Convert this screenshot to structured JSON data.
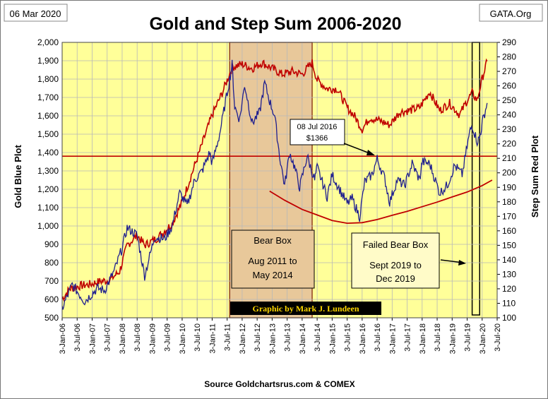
{
  "header": {
    "date_label": "06 Mar 2020",
    "site_label": "GATA.Org"
  },
  "colors": {
    "plot_bg": "#ffff99",
    "bear_box_fill": "#e8c89a",
    "gold_series": "#1f1f8f",
    "step_sum_series": "#c00000",
    "annotation_box": "#fffbc8",
    "credit_bg": "#000000",
    "credit_text": "#ffd700"
  },
  "chart_data": {
    "type": "line",
    "title": "Gold and Step Sum 2006-2020",
    "source": "Source Goldchartsrus.com & COMEX",
    "credit": "Graphic by Mark J. Lundeen",
    "ylabel_left": "Gold   Blue Plot",
    "ylabel_right": "Step Sum    Red Plot",
    "ylim_left": [
      500,
      2000
    ],
    "ylim_right": [
      100,
      290
    ],
    "left_ticks": [
      "500",
      "600",
      "700",
      "800",
      "900",
      "1,000",
      "1,100",
      "1,200",
      "1,300",
      "1,400",
      "1,500",
      "1,600",
      "1,700",
      "1,800",
      "1,900",
      "2,000"
    ],
    "right_ticks": [
      "100",
      "110",
      "120",
      "130",
      "140",
      "150",
      "160",
      "170",
      "180",
      "190",
      "200",
      "210",
      "220",
      "230",
      "240",
      "250",
      "260",
      "270",
      "280",
      "290"
    ],
    "x_ticks": [
      "3-Jan-06",
      "3-Jul-06",
      "3-Jan-07",
      "3-Jul-07",
      "3-Jan-08",
      "3-Jul-08",
      "3-Jan-09",
      "3-Jul-09",
      "3-Jan-10",
      "3-Jul-10",
      "3-Jan-11",
      "3-Jul-11",
      "3-Jan-12",
      "3-Jul-12",
      "3-Jan-13",
      "3-Jul-13",
      "3-Jan-14",
      "3-Jul-14",
      "3-Jan-15",
      "3-Jul-15",
      "3-Jan-16",
      "3-Jul-16",
      "3-Jan-17",
      "3-Jul-17",
      "3-Jan-18",
      "3-Jul-18",
      "3-Jan-19",
      "3-Jul-19",
      "3-Jan-20",
      "3-Jul-20"
    ],
    "grid": true,
    "series": [
      {
        "axis": "left",
        "points": [
          [
            "2006-01",
            550
          ],
          [
            "2006-05",
            680
          ],
          [
            "2006-10",
            590
          ],
          [
            "2007-03",
            660
          ],
          [
            "2007-06",
            650
          ],
          [
            "2007-10",
            760
          ],
          [
            "2008-01",
            880
          ],
          [
            "2008-03",
            990
          ],
          [
            "2008-07",
            950
          ],
          [
            "2008-10",
            730
          ],
          [
            "2009-02",
            940
          ],
          [
            "2009-06",
            930
          ],
          [
            "2009-09",
            1000
          ],
          [
            "2009-12",
            1180
          ],
          [
            "2010-03",
            1110
          ],
          [
            "2010-06",
            1250
          ],
          [
            "2010-09",
            1300
          ],
          [
            "2010-12",
            1400
          ],
          [
            "2011-01",
            1340
          ],
          [
            "2011-04",
            1500
          ],
          [
            "2011-08",
            1800
          ],
          [
            "2011-09",
            1880
          ],
          [
            "2011-10",
            1650
          ],
          [
            "2011-12",
            1580
          ],
          [
            "2012-02",
            1770
          ],
          [
            "2012-05",
            1560
          ],
          [
            "2012-08",
            1620
          ],
          [
            "2012-10",
            1780
          ],
          [
            "2012-12",
            1680
          ],
          [
            "2013-02",
            1600
          ],
          [
            "2013-04",
            1380
          ],
          [
            "2013-06",
            1220
          ],
          [
            "2013-08",
            1400
          ],
          [
            "2013-10",
            1320
          ],
          [
            "2013-12",
            1210
          ],
          [
            "2014-03",
            1380
          ],
          [
            "2014-06",
            1250
          ],
          [
            "2014-07",
            1320
          ],
          [
            "2014-11",
            1160
          ],
          [
            "2015-01",
            1280
          ],
          [
            "2015-04",
            1200
          ],
          [
            "2015-07",
            1120
          ],
          [
            "2015-09",
            1150
          ],
          [
            "2015-12",
            1050
          ],
          [
            "2016-02",
            1240
          ],
          [
            "2016-05",
            1280
          ],
          [
            "2016-07",
            1366
          ],
          [
            "2016-10",
            1260
          ],
          [
            "2016-12",
            1130
          ],
          [
            "2017-03",
            1250
          ],
          [
            "2017-06",
            1220
          ],
          [
            "2017-09",
            1340
          ],
          [
            "2017-12",
            1250
          ],
          [
            "2018-01",
            1350
          ],
          [
            "2018-04",
            1340
          ],
          [
            "2018-08",
            1180
          ],
          [
            "2018-11",
            1220
          ],
          [
            "2019-02",
            1330
          ],
          [
            "2019-05",
            1280
          ],
          [
            "2019-08",
            1510
          ],
          [
            "2019-09",
            1550
          ],
          [
            "2019-11",
            1460
          ],
          [
            "2019-12",
            1480
          ],
          [
            "2020-01",
            1560
          ],
          [
            "2020-03",
            1670
          ]
        ]
      },
      {
        "axis": "right",
        "points": [
          [
            "2006-01",
            113
          ],
          [
            "2006-04",
            120
          ],
          [
            "2006-08",
            122
          ],
          [
            "2006-12",
            123
          ],
          [
            "2007-04",
            125
          ],
          [
            "2007-08",
            126
          ],
          [
            "2007-12",
            132
          ],
          [
            "2008-03",
            150
          ],
          [
            "2008-07",
            157
          ],
          [
            "2008-10",
            150
          ],
          [
            "2009-03",
            155
          ],
          [
            "2009-09",
            165
          ],
          [
            "2010-01",
            180
          ],
          [
            "2010-05",
            200
          ],
          [
            "2010-09",
            220
          ],
          [
            "2011-01",
            240
          ],
          [
            "2011-05",
            255
          ],
          [
            "2011-09",
            273
          ],
          [
            "2012-01",
            275
          ],
          [
            "2012-05",
            272
          ],
          [
            "2012-09",
            276
          ],
          [
            "2013-01",
            272
          ],
          [
            "2013-05",
            268
          ],
          [
            "2013-09",
            270
          ],
          [
            "2014-01",
            268
          ],
          [
            "2014-05",
            276
          ],
          [
            "2014-07",
            264
          ],
          [
            "2014-11",
            258
          ],
          [
            "2015-03",
            258
          ],
          [
            "2015-07",
            245
          ],
          [
            "2015-10",
            239
          ],
          [
            "2016-01",
            230
          ],
          [
            "2016-04",
            238
          ],
          [
            "2016-08",
            236
          ],
          [
            "2016-12",
            233
          ],
          [
            "2017-04",
            242
          ],
          [
            "2017-08",
            243
          ],
          [
            "2017-12",
            245
          ],
          [
            "2018-04",
            256
          ],
          [
            "2018-08",
            243
          ],
          [
            "2018-12",
            248
          ],
          [
            "2019-04",
            240
          ],
          [
            "2019-07",
            250
          ],
          [
            "2019-09",
            255
          ],
          [
            "2019-11",
            250
          ],
          [
            "2020-01",
            265
          ],
          [
            "2020-03",
            277
          ]
        ]
      }
    ],
    "reference_lines": [
      {
        "axis": "left",
        "y": 1380
      }
    ],
    "trend_curve": {
      "axis": "left",
      "points": [
        [
          "2012-12",
          1190
        ],
        [
          "2013-06",
          1140
        ],
        [
          "2014-01",
          1090
        ],
        [
          "2014-07",
          1060
        ],
        [
          "2015-01",
          1030
        ],
        [
          "2015-07",
          1015
        ],
        [
          "2016-01",
          1018
        ],
        [
          "2016-07",
          1035
        ],
        [
          "2017-01",
          1058
        ],
        [
          "2017-07",
          1080
        ],
        [
          "2018-01",
          1105
        ],
        [
          "2018-07",
          1130
        ],
        [
          "2019-01",
          1158
        ],
        [
          "2019-07",
          1185
        ],
        [
          "2020-01",
          1220
        ],
        [
          "2020-05",
          1250
        ]
      ]
    },
    "shaded_regions": [
      {
        "x_start": "2011-08",
        "x_end": "2014-05",
        "style": "filled"
      },
      {
        "x_start": "2019-09",
        "x_end": "2019-12",
        "style": "outline"
      }
    ],
    "annotations": [
      {
        "lines": [
          "08 Jul 2016",
          "$1366"
        ],
        "x": "2016-07",
        "y": 1366
      },
      {
        "lines": [
          "Bear Box",
          "Aug 2011 to",
          "May 2014"
        ]
      },
      {
        "lines": [
          "Failed Bear Box",
          "Sept 2019 to",
          "Dec 2019"
        ]
      }
    ]
  }
}
